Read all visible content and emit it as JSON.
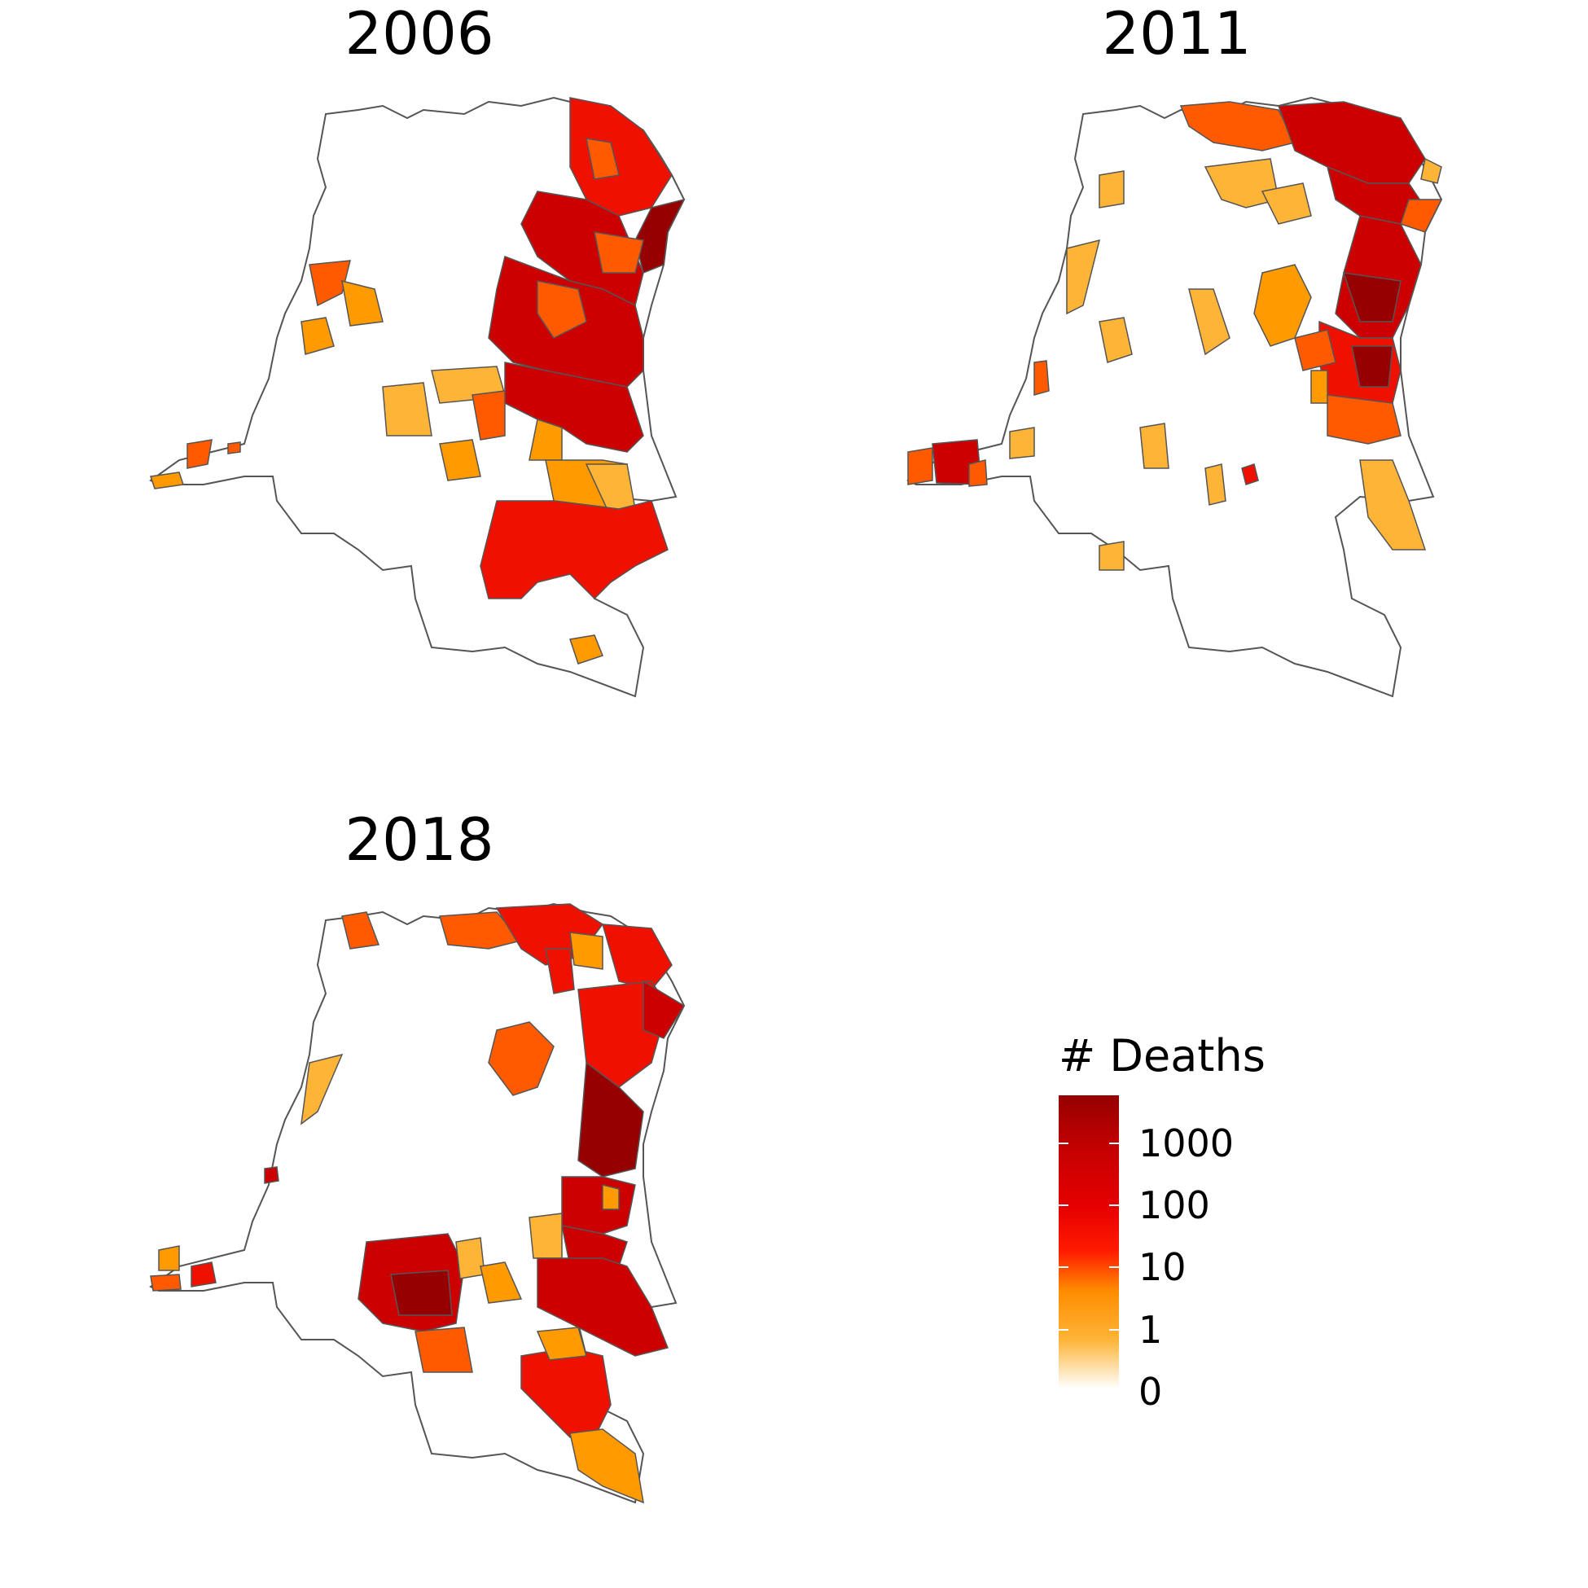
{
  "panels": [
    {
      "title": "2006"
    },
    {
      "title": "2011"
    },
    {
      "title": "2018"
    }
  ],
  "legend": {
    "title": "# Deaths",
    "labels": [
      "1000",
      "100",
      "10",
      "1",
      "0"
    ]
  },
  "colors": {
    "none": "#ffffff",
    "light_orange": "#fdb437",
    "orange": "#ff9a00",
    "dark_orange": "#ff5a00",
    "red": "#ee1100",
    "crimson": "#cc0000",
    "dark_red": "#960000",
    "border": "#555555"
  }
}
